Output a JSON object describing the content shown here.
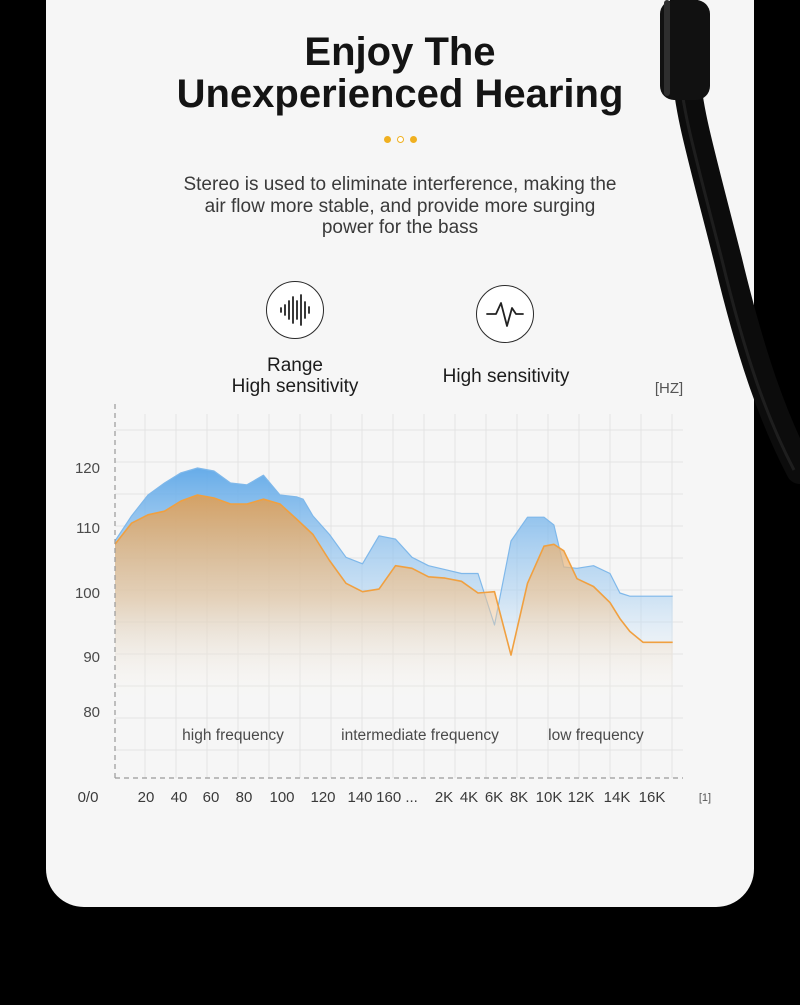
{
  "header": {
    "title_line1": "Enjoy The",
    "title_line2": "Unexperienced Hearing",
    "accent_color": "#f0b020"
  },
  "description": {
    "line1": "Stereo is used to eliminate interference, making the",
    "line2": "air flow more stable, and provide more surging",
    "line3": "power for the bass"
  },
  "features": [
    {
      "icon": "sound-wave-icon",
      "line1": "Range",
      "line2": "High sensitivity"
    },
    {
      "icon": "pulse-icon",
      "line1": "High sensitivity"
    }
  ],
  "chart_data": {
    "type": "area",
    "unit_label": "[HZ]",
    "x_end_label": "[1]",
    "origin_label": "0/0",
    "y_ticks": [
      120,
      110,
      100,
      90,
      80
    ],
    "x_tick_labels": [
      "20",
      "40",
      "60",
      "80",
      "100",
      "120",
      "140",
      "160 ...",
      "2K",
      "4K",
      "6K",
      "8K",
      "10K",
      "12K",
      "14K",
      "16K"
    ],
    "regions": [
      "high frequency",
      "intermediate frequency",
      "low frequency"
    ],
    "series": [
      {
        "color": "#7fb8ea",
        "x": [
          0,
          0.5,
          1.0,
          1.5,
          2.0,
          2.5,
          3.0,
          3.5,
          4.0,
          4.5,
          5.0,
          5.5,
          5.7,
          6.0,
          6.5,
          7.0,
          7.5,
          8.0,
          8.5,
          9.0,
          9.5,
          10.0,
          10.5,
          11.0,
          11.5,
          12.0,
          12.5,
          13.0,
          13.3,
          13.6,
          14.0,
          14.5,
          15.0,
          15.3,
          15.6,
          16.0,
          16.3,
          16.6,
          16.9
        ],
        "values": [
          108,
          112,
          115.5,
          117.5,
          119.2,
          120,
          119.5,
          117.5,
          117.2,
          118.8,
          115.5,
          115.2,
          114.8,
          112,
          109,
          105.5,
          104.5,
          108.8,
          108.3,
          105.5,
          104.2,
          103.6,
          103,
          103,
          95,
          108,
          111.8,
          111.8,
          110.5,
          104,
          103.8,
          104.2,
          103,
          100,
          99.5,
          99.5,
          99.5,
          99.5,
          99.5
        ]
      },
      {
        "color": "#f0a040",
        "x": [
          0,
          0.5,
          1.0,
          1.5,
          2.0,
          2.5,
          3.0,
          3.5,
          4.0,
          4.5,
          5.0,
          5.5,
          6.0,
          6.5,
          7.0,
          7.5,
          8.0,
          8.5,
          9.0,
          9.5,
          10.0,
          10.5,
          11.0,
          11.5,
          12.0,
          12.5,
          13.0,
          13.3,
          13.6,
          14.0,
          14.5,
          15.0,
          15.3,
          15.6,
          16.0,
          16.3,
          16.6,
          16.9
        ],
        "values": [
          107.5,
          110.8,
          112.2,
          112.8,
          114.5,
          115.5,
          115,
          114,
          114,
          114.8,
          114,
          111.5,
          109,
          105,
          101.5,
          100.2,
          100.6,
          104.2,
          103.8,
          102.5,
          102.3,
          101.8,
          100,
          100.2,
          90.3,
          101.5,
          107.2,
          107.5,
          106.5,
          102.2,
          101,
          98.5,
          96,
          94,
          92.3,
          92.3,
          92.3,
          92.3
        ]
      }
    ]
  }
}
